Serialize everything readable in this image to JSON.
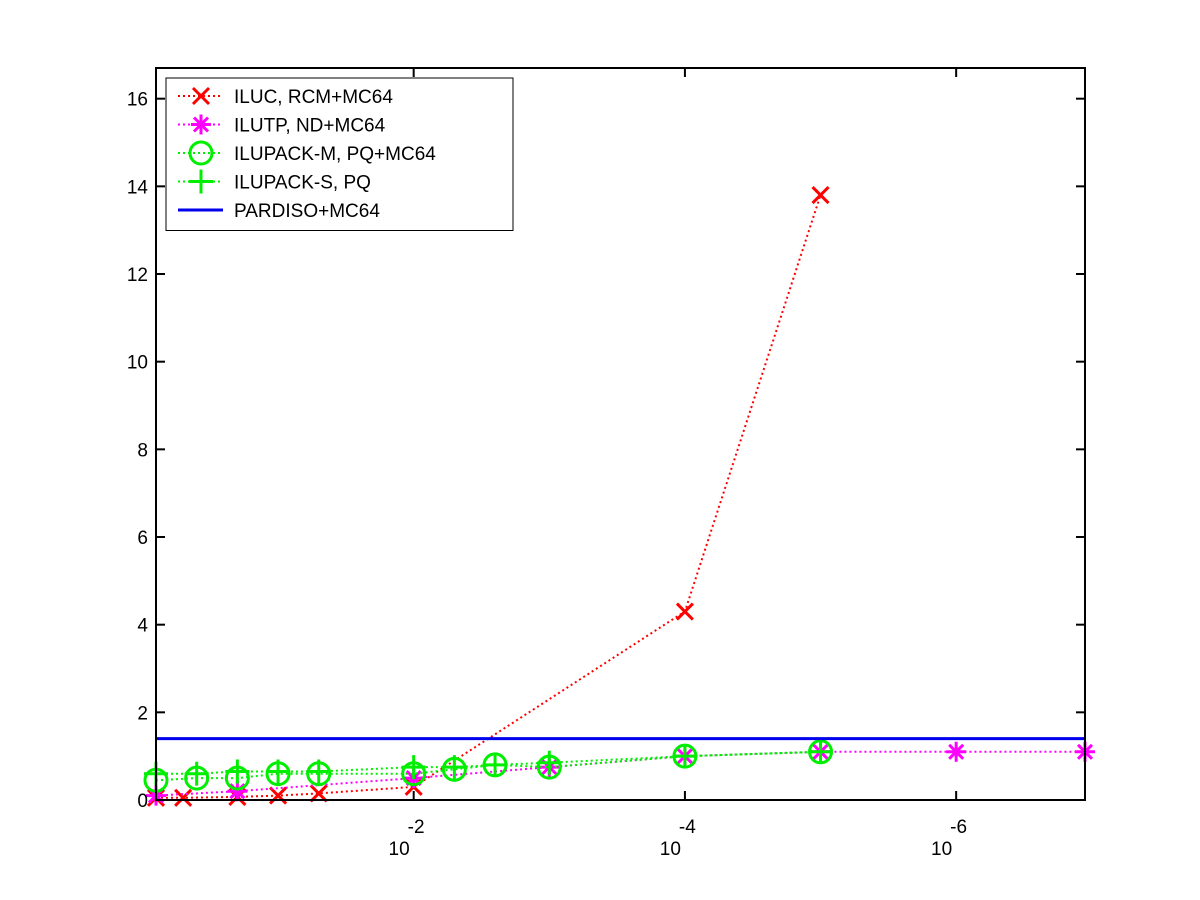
{
  "chart_data": {
    "type": "line",
    "title": "",
    "xlabel": "",
    "ylabel": "",
    "x_scale": "log",
    "x_direction": "decreasing",
    "x_axis_units": "drop tolerance (log10), decreasing to the right",
    "xlim_log10": [
      -0.1,
      -6.95
    ],
    "ylim": [
      0,
      16.7
    ],
    "y_ticks": [
      0,
      2,
      4,
      6,
      8,
      10,
      12,
      14,
      16
    ],
    "x_ticks": [
      {
        "base": "10",
        "exponent": "-2",
        "log10": -2
      },
      {
        "base": "10",
        "exponent": "-4",
        "log10": -4
      },
      {
        "base": "10",
        "exponent": "-6",
        "log10": -6
      }
    ],
    "grid": false,
    "legend_position": "top-left",
    "series": [
      {
        "name": "ILUC, RCM+MC64",
        "color": "#ff0000",
        "line_style": "dotted",
        "marker": "x",
        "points": [
          {
            "x": -0.1,
            "y": 0.05
          },
          {
            "x": -0.3,
            "y": 0.05
          },
          {
            "x": -0.7,
            "y": 0.07
          },
          {
            "x": -1.0,
            "y": 0.1
          },
          {
            "x": -1.3,
            "y": 0.15
          },
          {
            "x": -2.0,
            "y": 0.3
          },
          {
            "x": -4.0,
            "y": 4.3
          },
          {
            "x": -5.0,
            "y": 13.8
          }
        ]
      },
      {
        "name": "ILUTP,  ND+MC64",
        "color": "#ff00ff",
        "line_style": "dotted",
        "marker": "asterisk",
        "points": [
          {
            "x": -0.1,
            "y": 0.1
          },
          {
            "x": -0.7,
            "y": 0.2
          },
          {
            "x": -2.0,
            "y": 0.5
          },
          {
            "x": -3.0,
            "y": 0.75
          },
          {
            "x": -4.0,
            "y": 1.0
          },
          {
            "x": -5.0,
            "y": 1.1
          },
          {
            "x": -6.0,
            "y": 1.1
          },
          {
            "x": -6.95,
            "y": 1.1
          }
        ]
      },
      {
        "name": "ILUPACK-M, PQ+MC64",
        "color": "#00ee00",
        "line_style": "dotted",
        "marker": "circle",
        "points": [
          {
            "x": -0.1,
            "y": 0.45
          },
          {
            "x": -0.4,
            "y": 0.5
          },
          {
            "x": -0.7,
            "y": 0.5
          },
          {
            "x": -1.0,
            "y": 0.6
          },
          {
            "x": -1.3,
            "y": 0.6
          },
          {
            "x": -2.0,
            "y": 0.6
          },
          {
            "x": -2.3,
            "y": 0.7
          },
          {
            "x": -2.6,
            "y": 0.8
          },
          {
            "x": -3.0,
            "y": 0.75
          },
          {
            "x": -4.0,
            "y": 1.0
          },
          {
            "x": -5.0,
            "y": 1.1
          }
        ]
      },
      {
        "name": "ILUPACK-S, PQ",
        "color": "#00ee00",
        "line_style": "dotted",
        "marker": "plus",
        "points": [
          {
            "x": -0.1,
            "y": 0.6
          },
          {
            "x": -0.4,
            "y": 0.6
          },
          {
            "x": -0.7,
            "y": 0.65
          },
          {
            "x": -1.0,
            "y": 0.65
          },
          {
            "x": -1.3,
            "y": 0.65
          },
          {
            "x": -2.0,
            "y": 0.75
          },
          {
            "x": -2.3,
            "y": 0.75
          },
          {
            "x": -2.6,
            "y": 0.8
          },
          {
            "x": -3.0,
            "y": 0.85
          },
          {
            "x": -4.0,
            "y": 1.0
          },
          {
            "x": -5.0,
            "y": 1.1
          }
        ]
      },
      {
        "name": "PARDISO+MC64",
        "color": "#0000ee",
        "line_style": "solid",
        "marker": "none",
        "points": [
          {
            "x": -0.1,
            "y": 1.4
          },
          {
            "x": -6.95,
            "y": 1.4
          }
        ]
      }
    ]
  }
}
